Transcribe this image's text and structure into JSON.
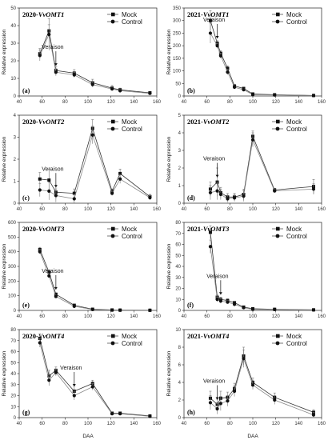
{
  "figure": {
    "xlabel": "DAA",
    "ylabel": "Relative expression"
  },
  "chart_data": [
    {
      "type": "line",
      "letter": "(a)",
      "title_year": "2020-",
      "title_gene": "VvOMT1",
      "xlim": [
        40,
        160
      ],
      "xticks": [
        40,
        60,
        80,
        100,
        120,
        140,
        160
      ],
      "ylim": [
        0,
        50
      ],
      "yticks": [
        0,
        10,
        20,
        30,
        40,
        50
      ],
      "legend": [
        "Mock",
        "Control"
      ],
      "annotation": "Veraison",
      "annotation_x": 72,
      "series": [
        {
          "name": "Mock",
          "x": [
            58,
            66,
            72,
            88,
            104,
            121,
            128,
            154
          ],
          "y": [
            24,
            37,
            14.5,
            13,
            7.5,
            4.5,
            3.5,
            1.8
          ],
          "err": [
            3,
            3.5,
            2,
            2,
            2,
            1.5,
            1,
            0.5
          ]
        },
        {
          "name": "Control",
          "x": [
            58,
            66,
            72,
            88,
            104,
            121,
            128,
            154
          ],
          "y": [
            23,
            35,
            13.5,
            12,
            6.5,
            4,
            3,
            1.5
          ],
          "err": [
            3,
            9,
            2,
            1.5,
            1.5,
            1,
            1,
            0.5
          ]
        }
      ]
    },
    {
      "type": "line",
      "letter": "(b)",
      "title_year": "2021-",
      "title_gene": "VvOMT1",
      "xlim": [
        40,
        160
      ],
      "xticks": [
        40,
        60,
        80,
        100,
        120,
        140,
        160
      ],
      "ylim": [
        0,
        350
      ],
      "yticks": [
        0,
        50,
        100,
        150,
        200,
        250,
        300,
        350
      ],
      "legend": [
        "Mock",
        "Control"
      ],
      "annotation": "Veraison",
      "annotation_x": 69,
      "series": [
        {
          "name": "Mock",
          "x": [
            63,
            69,
            72,
            78,
            84,
            92,
            100,
            119,
            153
          ],
          "y": [
            300,
            210,
            170,
            110,
            40,
            30,
            8,
            5,
            2
          ],
          "err": [
            40,
            10,
            10,
            10,
            5,
            5,
            3,
            2,
            1
          ]
        },
        {
          "name": "Control",
          "x": [
            63,
            69,
            72,
            78,
            84,
            92,
            100,
            119,
            153
          ],
          "y": [
            250,
            200,
            160,
            95,
            35,
            25,
            5,
            4,
            2
          ],
          "err": [
            40,
            10,
            10,
            10,
            5,
            5,
            3,
            2,
            1
          ]
        }
      ]
    },
    {
      "type": "line",
      "letter": "(c)",
      "title_year": "2020-",
      "title_gene": "VvOMT2",
      "xlim": [
        40,
        160
      ],
      "xticks": [
        40,
        60,
        80,
        100,
        120,
        140,
        160
      ],
      "ylim": [
        0,
        4
      ],
      "yticks": [
        0,
        1,
        2,
        3,
        4
      ],
      "legend": [
        "Mock",
        "Control"
      ],
      "annotation": "Veraison",
      "annotation_x": 72,
      "series": [
        {
          "name": "Mock",
          "x": [
            58,
            66,
            72,
            88,
            104,
            121,
            128,
            154
          ],
          "y": [
            1.1,
            1.05,
            0.5,
            0.45,
            3.4,
            0.55,
            1.35,
            0.3
          ],
          "err": [
            0.3,
            0.5,
            0.3,
            0.2,
            0.4,
            0.1,
            0.2,
            0.1
          ]
        },
        {
          "name": "Control",
          "x": [
            58,
            66,
            72,
            88,
            104,
            121,
            128,
            154
          ],
          "y": [
            0.6,
            0.55,
            0.35,
            0.2,
            3.1,
            0.45,
            1.1,
            0.25
          ],
          "err": [
            0.3,
            0.4,
            0.3,
            0.2,
            0.4,
            0.1,
            0.2,
            0.1
          ]
        }
      ]
    },
    {
      "type": "line",
      "letter": "(d)",
      "title_year": "2021-",
      "title_gene": "VvOMT2",
      "xlim": [
        40,
        160
      ],
      "xticks": [
        40,
        60,
        80,
        100,
        120,
        140,
        160
      ],
      "ylim": [
        0,
        5
      ],
      "yticks": [
        0,
        1,
        2,
        3,
        4,
        5
      ],
      "legend": [
        "Mock",
        "Control"
      ],
      "annotation": "Veraison",
      "annotation_x": 69,
      "series": [
        {
          "name": "Mock",
          "x": [
            63,
            69,
            72,
            78,
            84,
            92,
            100,
            119,
            153
          ],
          "y": [
            0.8,
            1.2,
            0.6,
            0.35,
            0.35,
            0.5,
            3.8,
            0.75,
            0.95
          ],
          "err": [
            0.4,
            0.8,
            0.3,
            0.2,
            0.2,
            0.3,
            0.3,
            0.1,
            0.4
          ]
        },
        {
          "name": "Control",
          "x": [
            63,
            69,
            72,
            78,
            84,
            92,
            100,
            119,
            153
          ],
          "y": [
            0.6,
            0.7,
            0.5,
            0.25,
            0.3,
            0.4,
            3.6,
            0.7,
            0.8
          ],
          "err": [
            0.4,
            0.5,
            0.3,
            0.2,
            0.2,
            0.3,
            0.4,
            0.1,
            0.3
          ]
        }
      ]
    },
    {
      "type": "line",
      "letter": "(e)",
      "title_year": "2020-",
      "title_gene": "VvOMT3",
      "xlim": [
        40,
        160
      ],
      "xticks": [
        40,
        60,
        80,
        100,
        120,
        140,
        160
      ],
      "ylim": [
        0,
        600
      ],
      "yticks": [
        0,
        100,
        200,
        300,
        400,
        500,
        600
      ],
      "legend": [
        "Mock",
        "Control"
      ],
      "annotation": "Veraison",
      "annotation_x": 72,
      "series": [
        {
          "name": "Mock",
          "x": [
            58,
            66,
            72,
            88,
            104,
            121,
            128,
            154
          ],
          "y": [
            415,
            260,
            110,
            35,
            8,
            3,
            2,
            1
          ],
          "err": [
            15,
            15,
            10,
            5,
            2,
            1,
            1,
            1
          ]
        },
        {
          "name": "Control",
          "x": [
            58,
            66,
            72,
            88,
            104,
            121,
            128,
            154
          ],
          "y": [
            400,
            235,
            95,
            28,
            6,
            2,
            1.5,
            1
          ],
          "err": [
            15,
            15,
            10,
            5,
            2,
            1,
            1,
            1
          ]
        }
      ]
    },
    {
      "type": "line",
      "letter": "(f)",
      "title_year": "2021-",
      "title_gene": "VvOMT3",
      "xlim": [
        40,
        160
      ],
      "xticks": [
        40,
        60,
        80,
        100,
        120,
        140,
        160
      ],
      "ylim": [
        0,
        80
      ],
      "yticks": [
        0,
        10,
        20,
        30,
        40,
        50,
        60,
        70,
        80
      ],
      "legend": [
        "Mock",
        "Control"
      ],
      "annotation": "Veraison",
      "annotation_x": 72,
      "series": [
        {
          "name": "Mock",
          "x": [
            63,
            69,
            72,
            78,
            84,
            92,
            100,
            119,
            153
          ],
          "y": [
            71,
            12,
            10,
            9,
            7,
            3,
            1.5,
            1,
            0.5
          ],
          "err": [
            6,
            2,
            2,
            1.5,
            1,
            0.5,
            0.5,
            0.3,
            0.2
          ]
        },
        {
          "name": "Control",
          "x": [
            63,
            69,
            72,
            78,
            84,
            92,
            100,
            119,
            153
          ],
          "y": [
            58,
            10,
            8.5,
            7.5,
            5.5,
            2.5,
            1,
            0.8,
            0.4
          ],
          "err": [
            6,
            2,
            2,
            1.5,
            1,
            0.5,
            0.5,
            0.3,
            0.2
          ]
        }
      ]
    },
    {
      "type": "line",
      "letter": "(g)",
      "title_year": "2020-",
      "title_gene": "VvOMT4",
      "xlim": [
        40,
        160
      ],
      "xticks": [
        40,
        60,
        80,
        100,
        120,
        140,
        160
      ],
      "ylim": [
        0,
        80
      ],
      "yticks": [
        0,
        10,
        20,
        30,
        40,
        50,
        60,
        70,
        80
      ],
      "legend": [
        "Mock",
        "Control"
      ],
      "annotation": "Veraison",
      "annotation_x": 88,
      "series": [
        {
          "name": "Mock",
          "x": [
            58,
            66,
            72,
            88,
            104,
            121,
            128,
            154
          ],
          "y": [
            72,
            38,
            43,
            24,
            31,
            4,
            4,
            1.5
          ],
          "err": [
            4,
            5,
            3,
            5,
            3,
            1,
            1,
            0.5
          ]
        },
        {
          "name": "Control",
          "x": [
            58,
            66,
            72,
            88,
            104,
            121,
            128,
            154
          ],
          "y": [
            68,
            34,
            41,
            20,
            28,
            3.5,
            3.5,
            1.2
          ],
          "err": [
            4,
            5,
            3,
            4,
            3,
            1,
            1,
            0.5
          ]
        }
      ]
    },
    {
      "type": "line",
      "letter": "(h)",
      "title_year": "2021-",
      "title_gene": "VvOMT4",
      "xlim": [
        40,
        160
      ],
      "xticks": [
        40,
        60,
        80,
        100,
        120,
        140,
        160
      ],
      "ylim": [
        0,
        10
      ],
      "yticks": [
        0,
        2,
        4,
        6,
        8,
        10
      ],
      "legend": [
        "Mock",
        "Control"
      ],
      "annotation": "Veraison",
      "annotation_x": 69,
      "series": [
        {
          "name": "Mock",
          "x": [
            63,
            69,
            72,
            78,
            84,
            92,
            100,
            119,
            153
          ],
          "y": [
            2.2,
            1.5,
            2.2,
            2.3,
            3.3,
            7.0,
            4.0,
            2.3,
            0.6
          ],
          "err": [
            0.8,
            0.6,
            0.8,
            0.6,
            0.6,
            1.0,
            0.5,
            0.5,
            0.3
          ]
        },
        {
          "name": "Control",
          "x": [
            63,
            69,
            72,
            78,
            84,
            92,
            100,
            119,
            153
          ],
          "y": [
            1.7,
            1.0,
            1.6,
            1.9,
            3.0,
            6.7,
            3.7,
            2.0,
            0.3
          ],
          "err": [
            0.8,
            0.6,
            0.8,
            0.6,
            0.6,
            1.0,
            0.5,
            0.5,
            0.3
          ]
        }
      ]
    }
  ]
}
